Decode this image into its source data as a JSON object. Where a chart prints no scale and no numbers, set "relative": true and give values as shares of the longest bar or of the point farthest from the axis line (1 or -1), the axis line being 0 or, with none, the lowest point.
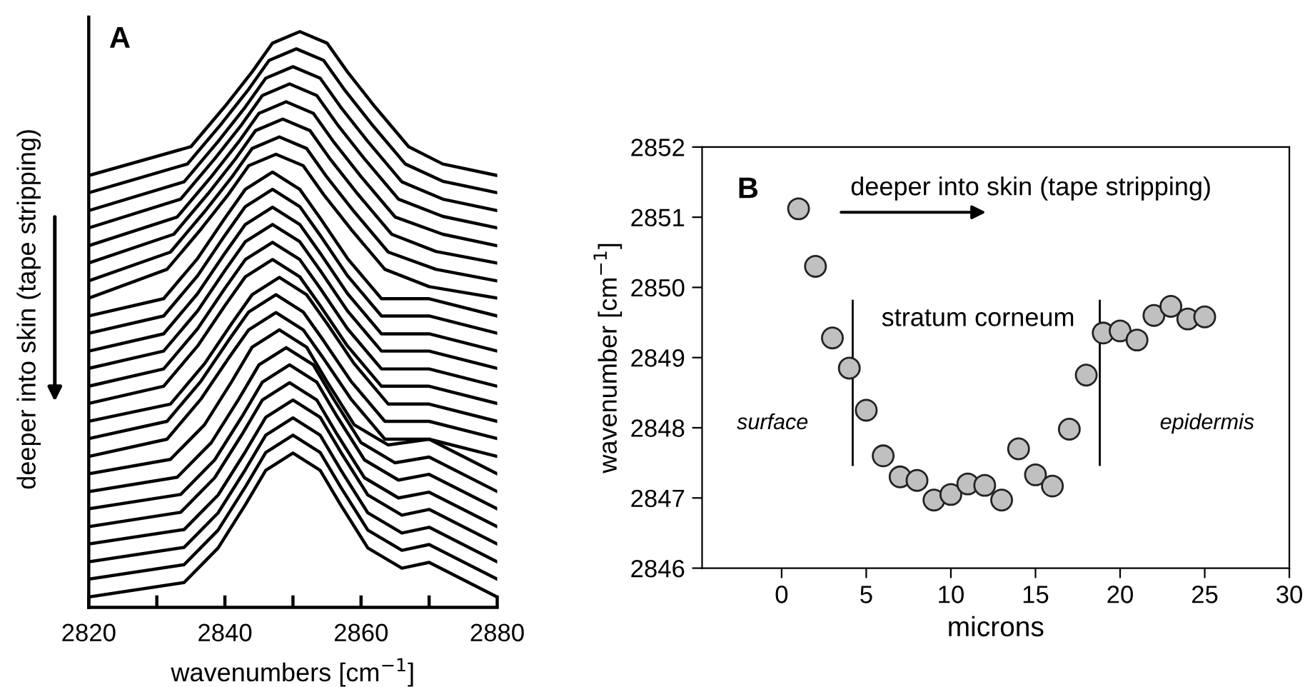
{
  "chart_data": [
    {
      "type": "line",
      "relative": true,
      "xlabel": "wavenumbers [cm$^{−1}$]",
      "ylabel": "deeper into skin (tape stripping)",
      "annotations": [
        "A"
      ],
      "xlim": [
        2820,
        2880
      ],
      "xticks": [
        2820,
        {
          "value": 2830,
          "label": null
        },
        2840,
        {
          "value": 2850,
          "label": null
        },
        2860,
        {
          "value": 2870,
          "label": null
        },
        2880
      ],
      "tick_labels": "x",
      "series": [
        {
          "color": "#000000",
          "x": [
            2820,
            2835,
            2840,
            2844,
            2847,
            2851,
            2855,
            2858,
            2862,
            2867,
            2872,
            2880
          ],
          "values": [
            0.75,
            0.8,
            0.87,
            0.93,
            0.98,
            1.0,
            0.98,
            0.93,
            0.87,
            0.8,
            0.77,
            0.75
          ]
        },
        {
          "color": "#000000",
          "x": [
            2820,
            2834.5,
            2839.5,
            2843.5,
            2846.5,
            2850.5,
            2854.5,
            2857.5,
            2861.5,
            2866.5,
            2872,
            2880
          ],
          "values": [
            0.72,
            0.77,
            0.84,
            0.9,
            0.95,
            0.97,
            0.95,
            0.9,
            0.84,
            0.77,
            0.74,
            0.72
          ]
        },
        {
          "color": "#000000",
          "x": [
            2820,
            2834,
            2839,
            2843,
            2846,
            2850,
            2854,
            2857,
            2861,
            2866,
            2872,
            2880
          ],
          "values": [
            0.689,
            0.739,
            0.809,
            0.869,
            0.919,
            0.939,
            0.919,
            0.869,
            0.809,
            0.739,
            0.709,
            0.689
          ]
        },
        {
          "color": "#000000",
          "x": [
            2820,
            2833.5,
            2838.5,
            2842.5,
            2845.5,
            2849.5,
            2853.5,
            2856.5,
            2860.5,
            2865.5,
            2872,
            2880
          ],
          "values": [
            0.659,
            0.709,
            0.779,
            0.839,
            0.889,
            0.909,
            0.889,
            0.839,
            0.779,
            0.709,
            0.679,
            0.659
          ]
        },
        {
          "color": "#000000",
          "x": [
            2820,
            2833,
            2838,
            2842,
            2845,
            2849,
            2853,
            2856,
            2860,
            2865,
            2872,
            2880
          ],
          "values": [
            0.628,
            0.678,
            0.748,
            0.808,
            0.858,
            0.878,
            0.858,
            0.808,
            0.748,
            0.678,
            0.648,
            0.628
          ]
        },
        {
          "color": "#000000",
          "x": [
            2820,
            2832.5,
            2837.5,
            2841.5,
            2844.5,
            2848.5,
            2852.5,
            2855.5,
            2859.5,
            2864.5,
            2871,
            2880
          ],
          "values": [
            0.598,
            0.648,
            0.718,
            0.778,
            0.828,
            0.848,
            0.828,
            0.778,
            0.718,
            0.648,
            0.618,
            0.598
          ]
        },
        {
          "color": "#000000",
          "x": [
            2820,
            2832,
            2837,
            2841,
            2844,
            2848,
            2852,
            2855,
            2859,
            2864,
            2871,
            2880
          ],
          "values": [
            0.567,
            0.617,
            0.687,
            0.747,
            0.797,
            0.817,
            0.797,
            0.747,
            0.687,
            0.617,
            0.587,
            0.567
          ]
        },
        {
          "color": "#000000",
          "x": [
            2820,
            2831.5,
            2836.5,
            2840.5,
            2843.5,
            2847.5,
            2851.5,
            2854.5,
            2858.5,
            2863.5,
            2870,
            2880
          ],
          "values": [
            0.537,
            0.587,
            0.657,
            0.717,
            0.767,
            0.787,
            0.767,
            0.717,
            0.657,
            0.587,
            0.557,
            0.537
          ]
        },
        {
          "color": "#000000",
          "x": [
            2820,
            2831,
            2836,
            2840,
            2843,
            2847,
            2851,
            2854,
            2858,
            2863,
            2870,
            2880
          ],
          "values": [
            0.506,
            0.536,
            0.606,
            0.676,
            0.726,
            0.756,
            0.726,
            0.676,
            0.606,
            0.536,
            0.536,
            0.506
          ]
        },
        {
          "color": "#000000",
          "x": [
            2820,
            2831,
            2836,
            2840,
            2843,
            2847,
            2851,
            2854,
            2858,
            2863,
            2870,
            2880
          ],
          "values": [
            0.476,
            0.506,
            0.576,
            0.646,
            0.696,
            0.726,
            0.696,
            0.646,
            0.576,
            0.506,
            0.506,
            0.476
          ]
        },
        {
          "color": "#000000",
          "x": [
            2820,
            2831,
            2836,
            2840,
            2843,
            2847,
            2851,
            2854,
            2858,
            2863,
            2870,
            2880
          ],
          "values": [
            0.445,
            0.475,
            0.545,
            0.615,
            0.665,
            0.695,
            0.665,
            0.615,
            0.545,
            0.475,
            0.475,
            0.445
          ]
        },
        {
          "color": "#000000",
          "x": [
            2820,
            2831,
            2836,
            2840,
            2843,
            2847,
            2851,
            2854,
            2858,
            2863,
            2870,
            2880
          ],
          "values": [
            0.415,
            0.445,
            0.515,
            0.585,
            0.635,
            0.665,
            0.635,
            0.585,
            0.515,
            0.445,
            0.445,
            0.415
          ]
        },
        {
          "color": "#000000",
          "x": [
            2820,
            2831,
            2836,
            2840,
            2843,
            2847,
            2851,
            2854,
            2858,
            2863,
            2870,
            2880
          ],
          "values": [
            0.384,
            0.414,
            0.484,
            0.554,
            0.604,
            0.634,
            0.604,
            0.554,
            0.484,
            0.414,
            0.414,
            0.384
          ]
        },
        {
          "color": "#000000",
          "x": [
            2820,
            2831,
            2836,
            2840,
            2843,
            2847,
            2851,
            2854,
            2858,
            2863,
            2870,
            2880
          ],
          "values": [
            0.354,
            0.384,
            0.454,
            0.524,
            0.574,
            0.604,
            0.574,
            0.524,
            0.454,
            0.384,
            0.384,
            0.354
          ]
        },
        {
          "color": "#000000",
          "x": [
            2820,
            2832,
            2837,
            2841,
            2844,
            2848,
            2852,
            2855,
            2859,
            2864,
            2870,
            2880
          ],
          "values": [
            0.323,
            0.353,
            0.423,
            0.493,
            0.543,
            0.573,
            0.543,
            0.493,
            0.423,
            0.353,
            0.353,
            0.323
          ]
        },
        {
          "color": "#000000",
          "x": [
            2820,
            2831.5,
            2836.5,
            2840.5,
            2843.5,
            2847.5,
            2851.5,
            2854.5,
            2858.5,
            2863.5,
            2870,
            2880
          ],
          "values": [
            0.293,
            0.323,
            0.393,
            0.463,
            0.513,
            0.543,
            0.513,
            0.463,
            0.393,
            0.323,
            0.323,
            0.293
          ]
        },
        {
          "color": "#000000",
          "x": [
            2820,
            2831.5,
            2836.5,
            2840.5,
            2843.5,
            2847.5,
            2851.5,
            2854.5,
            2858.5,
            2863.5,
            2870,
            2880
          ],
          "values": [
            0.262,
            0.292,
            0.362,
            0.432,
            0.482,
            0.512,
            0.482,
            0.432,
            0.362,
            0.292,
            0.292,
            0.262
          ]
        },
        {
          "color": "#000000",
          "x": [
            2820,
            2832,
            2837,
            2841,
            2844,
            2848,
            2852,
            2855,
            2859,
            2864,
            2870,
            2880
          ],
          "values": [
            0.232,
            0.257,
            0.317,
            0.392,
            0.452,
            0.482,
            0.452,
            0.392,
            0.317,
            0.282,
            0.292,
            0.232
          ]
        },
        {
          "color": "#000000",
          "x": [
            2820,
            2833,
            2838,
            2842,
            2845,
            2849,
            2853,
            2856,
            2860,
            2865,
            2870,
            2880
          ],
          "values": [
            0.201,
            0.226,
            0.286,
            0.361,
            0.421,
            0.451,
            0.421,
            0.361,
            0.286,
            0.251,
            0.261,
            0.201
          ]
        },
        {
          "color": "#000000",
          "x": [
            2820,
            2833.5,
            2838.5,
            2842.5,
            2845.5,
            2849.5,
            2853.5,
            2856.5,
            2860.5,
            2865.5,
            2870,
            2880
          ],
          "values": [
            0.171,
            0.196,
            0.256,
            0.331,
            0.391,
            0.421,
            0.391,
            0.331,
            0.256,
            0.221,
            0.231,
            0.171
          ]
        },
        {
          "color": "#000000",
          "x": [
            2820,
            2833.5,
            2838.5,
            2842.5,
            2845.5,
            2849.5,
            2853.5,
            2856.5,
            2860.5,
            2865.5,
            2870,
            2880
          ],
          "values": [
            0.14,
            0.165,
            0.225,
            0.3,
            0.36,
            0.39,
            0.36,
            0.3,
            0.225,
            0.19,
            0.2,
            0.14
          ]
        },
        {
          "color": "#000000",
          "x": [
            2820,
            2834,
            2839,
            2843,
            2846,
            2850,
            2854,
            2857,
            2861,
            2866,
            2870,
            2880
          ],
          "values": [
            0.11,
            0.135,
            0.195,
            0.27,
            0.33,
            0.36,
            0.33,
            0.27,
            0.195,
            0.16,
            0.17,
            0.11
          ]
        },
        {
          "color": "#000000",
          "x": [
            2820,
            2834,
            2839,
            2843,
            2846,
            2850,
            2854,
            2857,
            2861,
            2866,
            2870,
            2880
          ],
          "values": [
            0.079,
            0.104,
            0.164,
            0.239,
            0.299,
            0.329,
            0.299,
            0.239,
            0.164,
            0.129,
            0.139,
            0.079
          ]
        },
        {
          "color": "#000000",
          "x": [
            2820,
            2834,
            2839,
            2843,
            2846,
            2850,
            2854,
            2857,
            2861,
            2866,
            2870,
            2880
          ],
          "values": [
            0.049,
            0.074,
            0.134,
            0.209,
            0.269,
            0.299,
            0.269,
            0.209,
            0.134,
            0.099,
            0.109,
            0.049
          ]
        },
        {
          "color": "#000000",
          "x": [
            2820,
            2834,
            2839,
            2843,
            2846,
            2850,
            2854,
            2857,
            2861,
            2866,
            2870,
            2880
          ],
          "values": [
            0.018,
            0.043,
            0.103,
            0.178,
            0.238,
            0.268,
            0.238,
            0.178,
            0.103,
            0.068,
            0.078,
            0.018
          ]
        }
      ]
    },
    {
      "type": "scatter",
      "xlabel": "microns",
      "ylabel": "wavenumber [cm$^{−1}$]",
      "marker": "circle",
      "annotations": [
        "B",
        "deeper into skin (tape stripping)",
        "surface",
        "stratum corneum",
        "epidermis"
      ],
      "xlim": [
        -4.7,
        30
      ],
      "xticks": [
        0,
        5,
        10,
        15,
        20,
        25,
        30
      ],
      "ylim": [
        2846,
        2852
      ],
      "yticks": [
        2846,
        2847,
        2848,
        2849,
        2850,
        2851,
        2852
      ],
      "ref_lines": [
        {
          "axis": "x",
          "value": 4.2,
          "color": "#000000"
        },
        {
          "axis": "x",
          "value": 18.8,
          "color": "#000000"
        }
      ],
      "series": [
        {
          "color": "#c0c0c0",
          "x": [
            1,
            2,
            3,
            4,
            5,
            6,
            7,
            8,
            9,
            10,
            11,
            12,
            13,
            14,
            15,
            16,
            17,
            18,
            19,
            20,
            21,
            22,
            23,
            24,
            25
          ],
          "values": [
            2851.12,
            2850.3,
            2849.28,
            2848.85,
            2848.25,
            2847.6,
            2847.3,
            2847.25,
            2846.97,
            2847.05,
            2847.2,
            2847.18,
            2846.97,
            2847.7,
            2847.33,
            2847.17,
            2847.98,
            2848.75,
            2849.35,
            2849.38,
            2849.25,
            2849.6,
            2849.73,
            2849.55,
            2849.58
          ]
        }
      ]
    }
  ]
}
